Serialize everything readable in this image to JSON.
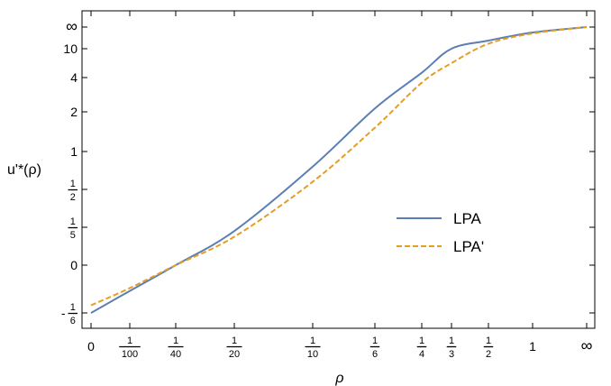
{
  "chart_data": {
    "type": "line",
    "title": "",
    "xlabel": "ρ",
    "ylabel": "u'*(ρ)",
    "x_ticks": [
      {
        "value": 0,
        "label": "0"
      },
      {
        "value": 0.01,
        "label": "1/100"
      },
      {
        "value": 0.025,
        "label": "1/40"
      },
      {
        "value": 0.05,
        "label": "1/20"
      },
      {
        "value": 0.1,
        "label": "1/10"
      },
      {
        "value": 0.1667,
        "label": "1/6"
      },
      {
        "value": 0.25,
        "label": "1/4"
      },
      {
        "value": 0.3333,
        "label": "1/3"
      },
      {
        "value": 0.5,
        "label": "1/2"
      },
      {
        "value": 1,
        "label": "1"
      },
      {
        "value": "inf",
        "label": "∞"
      }
    ],
    "y_ticks": [
      {
        "value": -0.1667,
        "label": "-1/6"
      },
      {
        "value": 0,
        "label": "0"
      },
      {
        "value": 0.2,
        "label": "1/5"
      },
      {
        "value": 0.5,
        "label": "1/2"
      },
      {
        "value": 1,
        "label": "1"
      },
      {
        "value": 2,
        "label": "2"
      },
      {
        "value": 4,
        "label": "4"
      },
      {
        "value": 10,
        "label": "10"
      },
      {
        "value": "inf",
        "label": "∞"
      }
    ],
    "legend_position": "center-right",
    "grid": false,
    "series": [
      {
        "name": "LPA",
        "color": "#5b7fb4",
        "dash": "solid",
        "points": [
          {
            "x": 0,
            "y": -0.1667
          },
          {
            "x": 0.01,
            "y": -0.09
          },
          {
            "x": 0.025,
            "y": 0.0
          },
          {
            "x": 0.05,
            "y": 0.18
          },
          {
            "x": 0.1,
            "y": 0.8
          },
          {
            "x": 0.1667,
            "y": 2.2
          },
          {
            "x": 0.25,
            "y": 5.0
          },
          {
            "x": 0.3333,
            "y": 10.0
          },
          {
            "x": 0.5,
            "y": 20.0
          },
          {
            "x": 1,
            "y": 60.0
          },
          {
            "x": "inf",
            "y": "inf"
          }
        ]
      },
      {
        "name": "LPA'",
        "color": "#e59e1f",
        "dash": "dashed",
        "points": [
          {
            "x": 0,
            "y": -0.14
          },
          {
            "x": 0.01,
            "y": -0.08
          },
          {
            "x": 0.025,
            "y": 0.0
          },
          {
            "x": 0.05,
            "y": 0.15
          },
          {
            "x": 0.1,
            "y": 0.6
          },
          {
            "x": 0.1667,
            "y": 1.6
          },
          {
            "x": 0.25,
            "y": 3.7
          },
          {
            "x": 0.3333,
            "y": 7.0
          },
          {
            "x": 0.5,
            "y": 15.0
          },
          {
            "x": 1,
            "y": 50.0
          },
          {
            "x": "inf",
            "y": "inf"
          }
        ]
      }
    ]
  }
}
